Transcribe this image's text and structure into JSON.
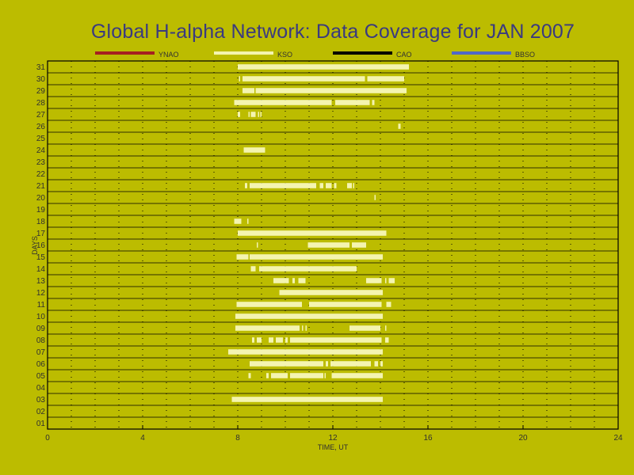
{
  "chart_data": {
    "type": "gantt",
    "title": "Global H-alpha Network: Data Coverage for JAN 2007",
    "xlabel": "TIME, UT",
    "ylabel": "DAYS",
    "xlim": [
      0,
      24
    ],
    "xticks": [
      "0",
      "4",
      "8",
      "12",
      "16",
      "20",
      "24"
    ],
    "days": [
      "01",
      "02",
      "03",
      "04",
      "05",
      "06",
      "07",
      "08",
      "09",
      "10",
      "11",
      "12",
      "13",
      "14",
      "15",
      "16",
      "17",
      "18",
      "19",
      "20",
      "21",
      "22",
      "23",
      "24",
      "25",
      "26",
      "27",
      "28",
      "29",
      "30",
      "31"
    ],
    "grid": true,
    "legend_position": "top",
    "series": [
      {
        "name": "YNAO",
        "color": "#a52020",
        "segments": []
      },
      {
        "name": "KSO",
        "color": "#f4f4b0",
        "segments": [
          {
            "day": 3,
            "intervals": [
              [
                7.75,
                14.1
              ]
            ]
          },
          {
            "day": 5,
            "intervals": [
              [
                8.45,
                8.55
              ],
              [
                9.2,
                9.3
              ],
              [
                9.4,
                10.1
              ],
              [
                10.2,
                11.6
              ],
              [
                11.65,
                11.7
              ],
              [
                11.95,
                14.1
              ]
            ]
          },
          {
            "day": 6,
            "intervals": [
              [
                8.5,
                11.6
              ],
              [
                11.7,
                11.8
              ],
              [
                11.9,
                13.6
              ],
              [
                13.75,
                13.9
              ],
              [
                14.0,
                14.1
              ]
            ]
          },
          {
            "day": 7,
            "intervals": [
              [
                7.6,
                14.1
              ]
            ]
          },
          {
            "day": 8,
            "intervals": [
              [
                8.6,
                8.7
              ],
              [
                8.8,
                9.0
              ],
              [
                9.3,
                9.5
              ],
              [
                9.6,
                9.9
              ],
              [
                10.0,
                10.1
              ],
              [
                10.2,
                14.05
              ],
              [
                14.2,
                14.35
              ]
            ]
          },
          {
            "day": 9,
            "intervals": [
              [
                7.9,
                10.6
              ],
              [
                10.7,
                10.75
              ],
              [
                10.85,
                10.9
              ],
              [
                12.7,
                14.0
              ],
              [
                14.2,
                14.25
              ]
            ]
          },
          {
            "day": 10,
            "intervals": [
              [
                7.9,
                14.1
              ]
            ]
          },
          {
            "day": 11,
            "intervals": [
              [
                7.95,
                10.7
              ],
              [
                11.0,
                14.05
              ],
              [
                14.25,
                14.45
              ]
            ]
          },
          {
            "day": 12,
            "intervals": [
              [
                9.75,
                14.1
              ]
            ]
          },
          {
            "day": 13,
            "intervals": [
              [
                9.5,
                10.15
              ],
              [
                10.3,
                10.4
              ],
              [
                10.55,
                10.85
              ],
              [
                13.4,
                14.05
              ],
              [
                14.2,
                14.25
              ],
              [
                14.35,
                14.6
              ]
            ]
          },
          {
            "day": 14,
            "intervals": [
              [
                8.55,
                8.75
              ],
              [
                8.9,
                13.0
              ]
            ]
          },
          {
            "day": 15,
            "intervals": [
              [
                7.95,
                8.45
              ],
              [
                8.5,
                14.1
              ]
            ]
          },
          {
            "day": 16,
            "intervals": [
              [
                8.8,
                8.85
              ],
              [
                10.95,
                12.7
              ],
              [
                12.8,
                13.4
              ]
            ]
          },
          {
            "day": 17,
            "intervals": [
              [
                8.0,
                14.25
              ]
            ]
          },
          {
            "day": 18,
            "intervals": [
              [
                7.85,
                8.15
              ],
              [
                8.4,
                8.45
              ]
            ]
          },
          {
            "day": 20,
            "intervals": [
              [
                13.75,
                13.8
              ]
            ]
          },
          {
            "day": 21,
            "intervals": [
              [
                8.3,
                8.4
              ],
              [
                8.5,
                11.3
              ],
              [
                11.45,
                11.6
              ],
              [
                11.7,
                11.95
              ],
              [
                12.05,
                12.15
              ],
              [
                12.6,
                12.8
              ],
              [
                12.85,
                12.9
              ]
            ]
          },
          {
            "day": 24,
            "intervals": [
              [
                8.25,
                9.15
              ]
            ]
          },
          {
            "day": 26,
            "intervals": [
              [
                14.75,
                14.85
              ]
            ]
          },
          {
            "day": 27,
            "intervals": [
              [
                8.0,
                8.1
              ],
              [
                8.45,
                8.5
              ],
              [
                8.55,
                8.75
              ],
              [
                8.85,
                8.9
              ],
              [
                8.95,
                9.0
              ]
            ]
          },
          {
            "day": 28,
            "intervals": [
              [
                7.85,
                11.95
              ],
              [
                12.1,
                13.55
              ],
              [
                13.65,
                13.75
              ]
            ]
          },
          {
            "day": 29,
            "intervals": [
              [
                8.2,
                8.7
              ],
              [
                8.75,
                15.1
              ]
            ]
          },
          {
            "day": 30,
            "intervals": [
              [
                8.05,
                8.1
              ],
              [
                8.2,
                13.35
              ],
              [
                13.45,
                15.0
              ]
            ]
          },
          {
            "day": 31,
            "intervals": [
              [
                8.0,
                15.2
              ]
            ]
          }
        ]
      },
      {
        "name": "CAO",
        "color": "#000000",
        "segments": []
      },
      {
        "name": "BBSO",
        "color": "#5068c8",
        "segments": []
      }
    ]
  }
}
